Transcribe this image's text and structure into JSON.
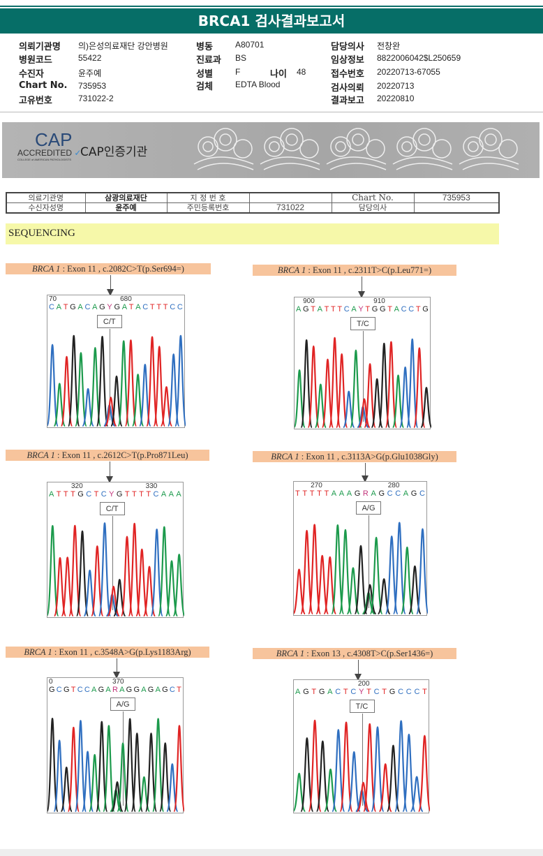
{
  "title": "BRCA1 검사결과보고서",
  "info": [
    {
      "k": "의뢰기관명",
      "v": "의)은성의료재단 강안병원"
    },
    {
      "k": "병원코드",
      "v": "55422"
    },
    {
      "k": "수진자",
      "v": "윤주예"
    },
    {
      "k": "Chart No.",
      "v": "735953"
    },
    {
      "k": "고유번호",
      "v": "731022-2"
    },
    {
      "k": "병동",
      "v": "A80701"
    },
    {
      "k": "진료과",
      "v": "BS"
    },
    {
      "k": "성별",
      "v": "F"
    },
    {
      "k": "검체",
      "v": "EDTA Blood"
    },
    {
      "k": "나이",
      "v": "48"
    },
    {
      "k": "담당의사",
      "v": "전창완"
    },
    {
      "k": "임상정보",
      "v": "8822006042$L250659"
    },
    {
      "k": "접수번호",
      "v": "20220713-67055"
    },
    {
      "k": "검사의뢰",
      "v": "20220713"
    },
    {
      "k": "결과보고",
      "v": "20220810"
    }
  ],
  "cap": {
    "logo_big": "CAP",
    "logo_accredited": "ACCREDITED",
    "logo_college": "COLLEGE of AMERICAN PATHOLOGISTS",
    "cert": "CAP인증기관"
  },
  "patient_table": {
    "r1": [
      "의료기관명",
      "삼광의료재단",
      "지 정 번 호",
      "",
      "Chart No.",
      "735953"
    ],
    "r2": [
      "수신자성명",
      "윤주예",
      "주민등록번호",
      "731022",
      "담당의사",
      ""
    ]
  },
  "section": "SEQUENCING",
  "colors": {
    "A": "#1c9a4c",
    "C": "#2f6fc0",
    "G": "#222222",
    "T": "#e02424",
    "Y": "#c2337a",
    "R": "#c2337a"
  },
  "panels": [
    {
      "gene": "BRCA 1",
      "desc": " : Exon 11 , c.2082C>T(p.Ser694=)",
      "seq": "CATGACAGYGATACTTTCC",
      "ticks": [
        {
          "t": "70",
          "i": 0
        },
        {
          "t": "680",
          "i": 10
        }
      ],
      "call": "C/T",
      "het": 8
    },
    {
      "gene": "BRCA 1",
      "desc": " : Exon 11 , c.2311T>C(p.Leu771=)",
      "seq": "AGTATTTCAYTGGTACCTG",
      "ticks": [
        {
          "t": "900",
          "i": 1
        },
        {
          "t": "910",
          "i": 11
        }
      ],
      "call": "T/C",
      "het": 9
    },
    {
      "gene": "BRCA 1",
      "desc": " : Exon 11 , c.2612C>T(p.Pro871Leu)",
      "seq": "ATTTGCTCYGTTTTCAAA",
      "ticks": [
        {
          "t": "320",
          "i": 3
        },
        {
          "t": "330",
          "i": 13
        }
      ],
      "call": "C/T",
      "het": 8
    },
    {
      "gene": "BRCA 1",
      "desc": " : Exon 11 , c.3113A>G(p.Glu1038Gly)",
      "seq": "TTTTTAAAGRAGCCAGC",
      "ticks": [
        {
          "t": "270",
          "i": 2
        },
        {
          "t": "280",
          "i": 12
        }
      ],
      "call": "A/G",
      "het": 9
    },
    {
      "gene": "BRCA 1",
      "desc": " : Exon 11 , c.3548A>G(p.Lys1183Arg)",
      "seq": "GCGTCCAGARAGGAGAGCT",
      "ticks": [
        {
          "t": "0",
          "i": 0
        },
        {
          "t": "370",
          "i": 9
        }
      ],
      "call": "A/G",
      "het": 10
    },
    {
      "gene": "BRCA 1",
      "desc": " : Exon 13 , c.4308T>C(p.Ser1436=)",
      "seq": "AGTGACTCYTCTGCCCT",
      "ticks": [
        {
          "t": "200",
          "i": 8
        }
      ],
      "call": "T/C",
      "het": 8
    }
  ]
}
